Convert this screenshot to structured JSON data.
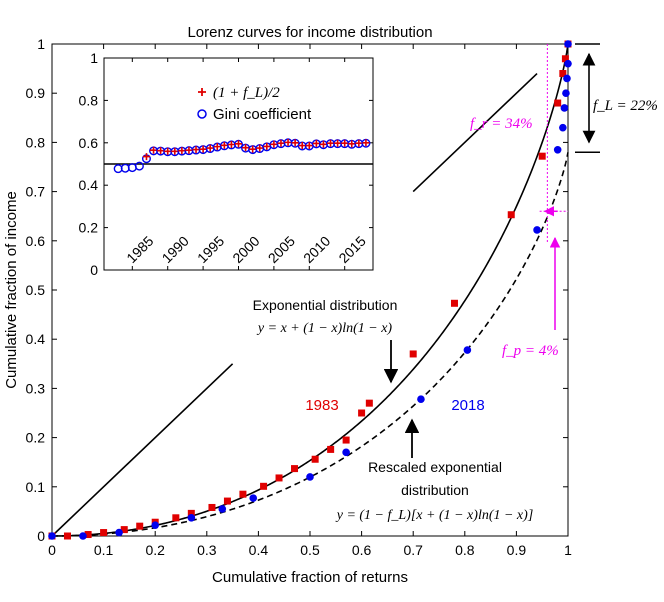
{
  "chart_data": [
    {
      "type": "scatter",
      "id": "main",
      "title": "Lorenz curves for income distribution",
      "xlabel": "Cumulative fraction of returns",
      "ylabel": "Cumulative fraction of income",
      "xlim": [
        0,
        1
      ],
      "ylim": [
        0,
        1
      ],
      "xticks": [
        0,
        0.1,
        0.2,
        0.3,
        0.4,
        0.5,
        0.6,
        0.7,
        0.8,
        0.9,
        1
      ],
      "yticks": [
        0,
        0.1,
        0.2,
        0.3,
        0.4,
        0.5,
        0.6,
        0.7,
        0.8,
        0.9,
        1
      ],
      "xtick_labels": [
        "0",
        "0.1",
        "0.2",
        "0.3",
        "0.4",
        "0.5",
        "0.6",
        "0.7",
        "0.8",
        "0.9",
        "1"
      ],
      "ytick_labels": [
        "0",
        "0.1",
        "0.2",
        "0.3",
        "0.4",
        "0.5",
        "0.6",
        "0.7",
        "0.8",
        "0.9",
        "1"
      ],
      "series": [
        {
          "name": "1983",
          "color": "#e00000",
          "marker": "square",
          "points": [
            [
              0.0,
              0.0
            ],
            [
              0.03,
              0.0
            ],
            [
              0.07,
              0.003
            ],
            [
              0.1,
              0.007
            ],
            [
              0.14,
              0.013
            ],
            [
              0.17,
              0.02
            ],
            [
              0.2,
              0.028
            ],
            [
              0.24,
              0.037
            ],
            [
              0.27,
              0.046
            ],
            [
              0.31,
              0.058
            ],
            [
              0.34,
              0.071
            ],
            [
              0.37,
              0.085
            ],
            [
              0.41,
              0.101
            ],
            [
              0.44,
              0.118
            ],
            [
              0.47,
              0.137
            ],
            [
              0.51,
              0.156
            ],
            [
              0.54,
              0.176
            ],
            [
              0.57,
              0.195
            ],
            [
              0.6,
              0.25
            ],
            [
              0.615,
              0.27
            ],
            [
              0.7,
              0.37
            ],
            [
              0.78,
              0.473
            ],
            [
              0.89,
              0.653
            ],
            [
              0.95,
              0.772
            ],
            [
              0.98,
              0.88
            ],
            [
              0.99,
              0.94
            ],
            [
              0.995,
              0.97
            ],
            [
              1.0,
              1.0
            ]
          ]
        },
        {
          "name": "2018",
          "color": "#0000ee",
          "marker": "circle",
          "points": [
            [
              0.0,
              0.0
            ],
            [
              0.06,
              0.0
            ],
            [
              0.13,
              0.007
            ],
            [
              0.2,
              0.022
            ],
            [
              0.27,
              0.037
            ],
            [
              0.33,
              0.055
            ],
            [
              0.39,
              0.077
            ],
            [
              0.5,
              0.12
            ],
            [
              0.57,
              0.17
            ],
            [
              0.715,
              0.278
            ],
            [
              0.805,
              0.378
            ],
            [
              0.94,
              0.622
            ],
            [
              0.98,
              0.785
            ],
            [
              0.99,
              0.83
            ],
            [
              0.993,
              0.87
            ],
            [
              0.996,
              0.9
            ],
            [
              0.998,
              0.93
            ],
            [
              1.0,
              0.96
            ],
            [
              1.0,
              1.0
            ]
          ]
        }
      ],
      "curves": [
        {
          "name": "Exponential distribution",
          "formula": "y = x + (1-x) ln(1-x)",
          "style": "solid",
          "color": "#000000"
        },
        {
          "name": "Rescaled exponential distribution",
          "formula": "y = (1 - f_L)[x + (1-x) ln(1-x)]",
          "style": "dashed",
          "color": "#000000",
          "f_L": 0.22
        }
      ],
      "annotations": {
        "year_1983": "1983",
        "year_2018": "2018",
        "exp_label": "Exponential distribution",
        "exp_formula": "y = x + (1 − x)ln(1 − x)",
        "rescaled_label_1": "Rescaled exponential",
        "rescaled_label_2": "distribution",
        "rescaled_formula": "y = (1 − f_L)[x + (1 − x)ln(1 − x)]",
        "fL_label": "f_L = 22%",
        "fr_label": "f_r = 34%",
        "fp_label": "f_p = 4%",
        "fL": 0.22,
        "fr": 0.34,
        "fp": 0.04
      },
      "colors": {
        "magenta": "#ee00ee",
        "red": "#e00000",
        "blue": "#0000ee"
      }
    },
    {
      "type": "scatter",
      "id": "inset",
      "xlim": [
        1981,
        2019
      ],
      "ylim": [
        0,
        1
      ],
      "xticks": [
        1985,
        1990,
        1995,
        2000,
        2005,
        2010,
        2015
      ],
      "xtick_labels": [
        "1985",
        "1990",
        "1995",
        "2000",
        "2005",
        "2010",
        "2015"
      ],
      "yticks": [
        0,
        0.2,
        0.4,
        0.6,
        0.8,
        1
      ],
      "ytick_labels": [
        "0",
        "0.2",
        "0.4",
        "0.6",
        "0.8",
        "1"
      ],
      "reference_line": 0.5,
      "legend": [
        {
          "label": "(1 + f_L)/2",
          "marker": "plus",
          "color": "#e00000"
        },
        {
          "label": "Gini coefficient",
          "marker": "circle",
          "color": "#0000ee"
        }
      ],
      "years": [
        1983,
        1984,
        1985,
        1986,
        1987,
        1988,
        1989,
        1990,
        1991,
        1992,
        1993,
        1994,
        1995,
        1996,
        1997,
        1998,
        1999,
        2000,
        2001,
        2002,
        2003,
        2004,
        2005,
        2006,
        2007,
        2008,
        2009,
        2010,
        2011,
        2012,
        2013,
        2014,
        2015,
        2016,
        2017,
        2018
      ],
      "series": [
        {
          "name": "(1 + f_L)/2",
          "values": [
            null,
            null,
            null,
            null,
            0.535,
            0.565,
            0.563,
            0.56,
            0.56,
            0.563,
            0.565,
            0.568,
            0.57,
            0.575,
            0.582,
            0.588,
            0.592,
            0.595,
            0.577,
            0.57,
            0.575,
            0.583,
            0.593,
            0.598,
            0.602,
            0.6,
            0.587,
            0.587,
            0.597,
            0.593,
            0.598,
            0.598,
            0.598,
            0.595,
            0.598,
            0.6
          ]
        },
        {
          "name": "Gini coefficient",
          "values": [
            0.478,
            0.48,
            0.483,
            0.49,
            0.525,
            0.562,
            0.561,
            0.558,
            0.558,
            0.561,
            0.563,
            0.566,
            0.568,
            0.573,
            0.58,
            0.586,
            0.59,
            0.593,
            0.575,
            0.568,
            0.573,
            0.581,
            0.591,
            0.596,
            0.6,
            0.598,
            0.585,
            0.585,
            0.595,
            0.591,
            0.596,
            0.596,
            0.596,
            0.593,
            0.596,
            0.598
          ]
        }
      ]
    }
  ]
}
